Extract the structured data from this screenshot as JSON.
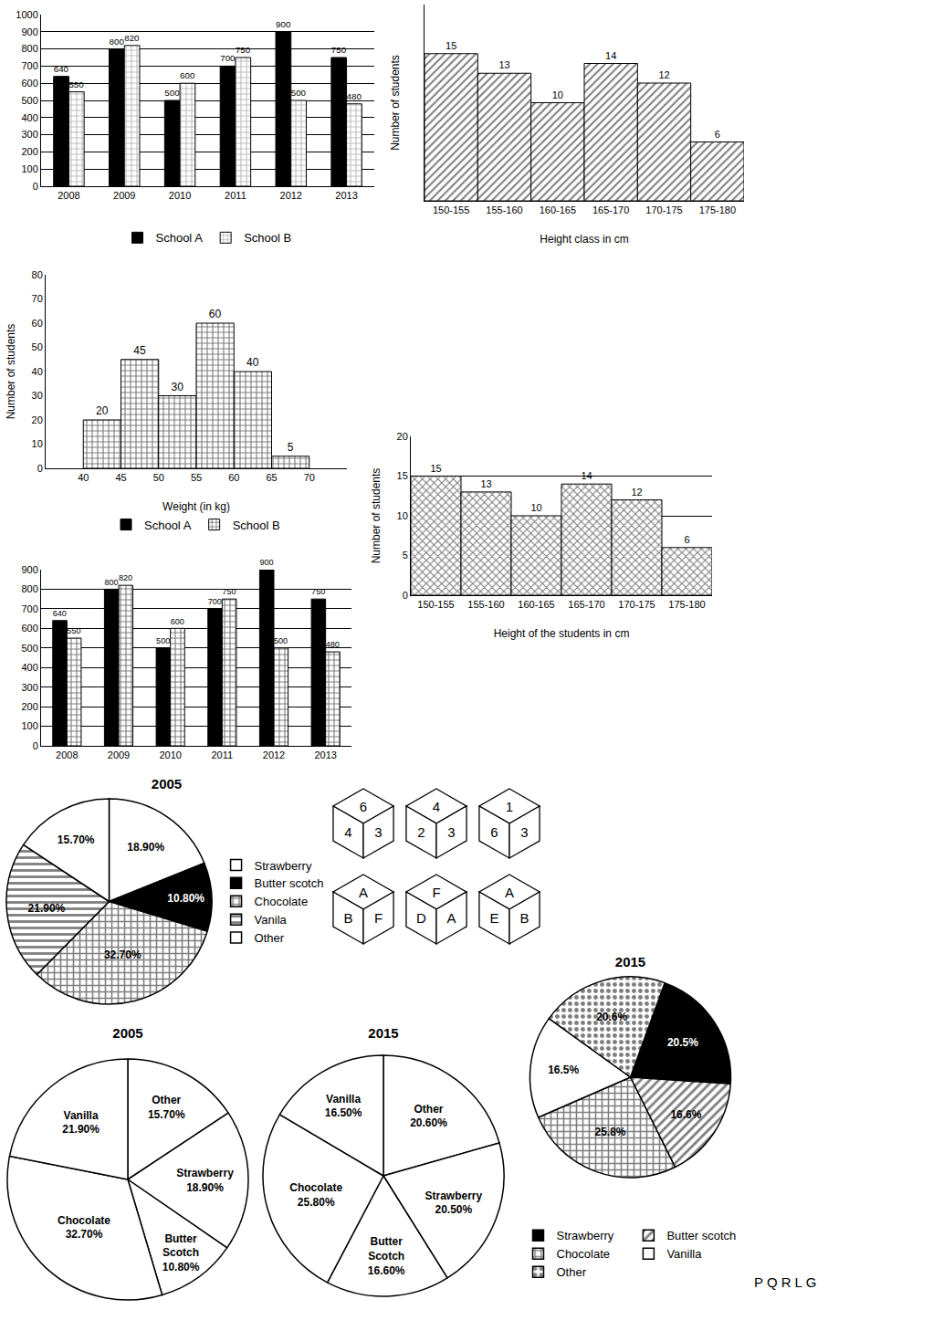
{
  "chart_data": [
    {
      "type": "bar",
      "categories": [
        "2008",
        "2009",
        "2010",
        "2011",
        "2012",
        "2013"
      ],
      "series": [
        {
          "name": "School A",
          "color": "#000000",
          "values": [
            640,
            800,
            500,
            700,
            900,
            750
          ]
        },
        {
          "name": "School B",
          "color": "#808080",
          "values": [
            550,
            820,
            600,
            750,
            500,
            480
          ]
        }
      ],
      "ylim": [
        0,
        1000
      ],
      "yticks": [
        0,
        100,
        200,
        300,
        400,
        500,
        600,
        700,
        800,
        900,
        1000
      ],
      "grid": true,
      "legend": "bottom",
      "data_labels": true
    },
    {
      "type": "histogram",
      "categories": [
        "150-155",
        "155-160",
        "160-165",
        "165-170",
        "170-175",
        "175-180"
      ],
      "values": [
        15,
        13,
        10,
        14,
        12,
        6
      ],
      "color": "#000000",
      "xlabel": "Height class in cm",
      "ylabel": "Number of students",
      "ylim": [
        0,
        20
      ],
      "yticks": [],
      "tick_labels": "x",
      "grid": false,
      "data_labels": true
    },
    {
      "type": "histogram",
      "bins": [
        40,
        45,
        50,
        55,
        60,
        65,
        70
      ],
      "series": [
        {
          "name": "School A",
          "color": "#000000",
          "values": [
            null,
            null,
            null,
            null,
            null,
            null
          ]
        },
        {
          "name": "School B",
          "color": "#000000",
          "values": [
            20,
            45,
            30,
            60,
            40,
            5
          ]
        }
      ],
      "xlabel": "Weight (in kg)",
      "ylabel": "Number of students",
      "xlim": [
        35,
        75
      ],
      "xticks": [
        40,
        45,
        50,
        55,
        60,
        65,
        70
      ],
      "ylim": [
        0,
        80
      ],
      "yticks": [
        0,
        10,
        20,
        30,
        40,
        50,
        60,
        70,
        80
      ],
      "grid": false,
      "legend": "bottom",
      "data_labels": true
    },
    {
      "type": "histogram",
      "categories": [
        "150-155",
        "155-160",
        "160-165",
        "165-170",
        "170-175",
        "175-180"
      ],
      "values": [
        15,
        13,
        10,
        14,
        12,
        6
      ],
      "color": "#000000",
      "xlabel": "Height of the students in cm",
      "ylabel": "Number of students",
      "ylim": [
        0,
        20
      ],
      "yticks": [
        0,
        5,
        10,
        15,
        20
      ],
      "grid": true,
      "data_labels": true
    },
    {
      "type": "bar",
      "categories": [
        "2008",
        "2009",
        "2010",
        "2011",
        "2012",
        "2013"
      ],
      "series": [
        {
          "color": "#000000",
          "values": [
            640,
            800,
            500,
            700,
            900,
            750
          ]
        },
        {
          "color": "#000000",
          "values": [
            550,
            820,
            600,
            750,
            500,
            480
          ]
        }
      ],
      "ylim": [
        0,
        900
      ],
      "yticks": [
        0,
        100,
        200,
        300,
        400,
        500,
        600,
        700,
        800,
        900
      ],
      "grid": true,
      "data_labels": true
    },
    {
      "type": "pie",
      "title": "2005",
      "categories": [
        "Strawberry",
        "Butter scotch",
        "Chocolate",
        "Vanila",
        "Other"
      ],
      "values": [
        18.9,
        10.8,
        32.7,
        21.9,
        15.7
      ],
      "value_labels": [
        "18.90%",
        "10.80%",
        "32.70%",
        "21.90%",
        "15.70%"
      ],
      "colors": [
        "#ffffff",
        "#000000",
        "#000000",
        "#000000",
        "#ffffff"
      ],
      "legend": "right",
      "data_labels": true
    },
    {
      "type": "pie",
      "title": "2005",
      "categories": [
        "Other",
        "Strawberry",
        "Butter Scotch",
        "Chocolate",
        "Vanilla"
      ],
      "values": [
        15.7,
        18.9,
        10.8,
        32.7,
        21.9
      ],
      "value_labels": [
        "Other\n15.70%",
        "Strawberry\n18.90%",
        "Butter\nScotch\n10.80%",
        "Chocolate\n32.70%",
        "Vanilla\n21.90%"
      ],
      "colors": [
        "#ffffff",
        "#ffffff",
        "#ffffff",
        "#ffffff",
        "#ffffff"
      ],
      "data_labels": true
    },
    {
      "type": "pie",
      "title": "2015",
      "categories": [
        "Other",
        "Strawberry",
        "Butter Scotch",
        "Chocolate",
        "Vanilla"
      ],
      "values": [
        20.6,
        20.5,
        16.6,
        25.8,
        16.5
      ],
      "value_labels": [
        "Other\n20.60%",
        "Strawberry\n20.50%",
        "Butter\nScotch\n16.60%",
        "Chocolate\n25.80%",
        "Vanilla\n16.50%"
      ],
      "colors": [
        "#ffffff",
        "#ffffff",
        "#ffffff",
        "#ffffff",
        "#ffffff"
      ],
      "data_labels": true
    },
    {
      "type": "pie",
      "title": "2015",
      "categories": [
        "Strawberry",
        "Butter scotch",
        "Chocolate",
        "Vanilla",
        "Other"
      ],
      "values": [
        20.5,
        16.6,
        25.8,
        16.5,
        20.6
      ],
      "value_labels": [
        "20.5%",
        "16.6%",
        "25.8%",
        "16.5%",
        "20.6%"
      ],
      "colors": [
        "#000000",
        "#000000",
        "#000000",
        "#ffffff",
        "#000000"
      ],
      "legend": "bottom",
      "data_labels": true
    }
  ],
  "dice": [
    [
      "6",
      "4",
      "3"
    ],
    [
      "4",
      "2",
      "3"
    ],
    [
      "1",
      "6",
      "3"
    ],
    [
      "A",
      "B",
      "F"
    ],
    [
      "F",
      "D",
      "A"
    ],
    [
      "A",
      "E",
      "B"
    ]
  ],
  "texts": [
    "PQRLG"
  ]
}
